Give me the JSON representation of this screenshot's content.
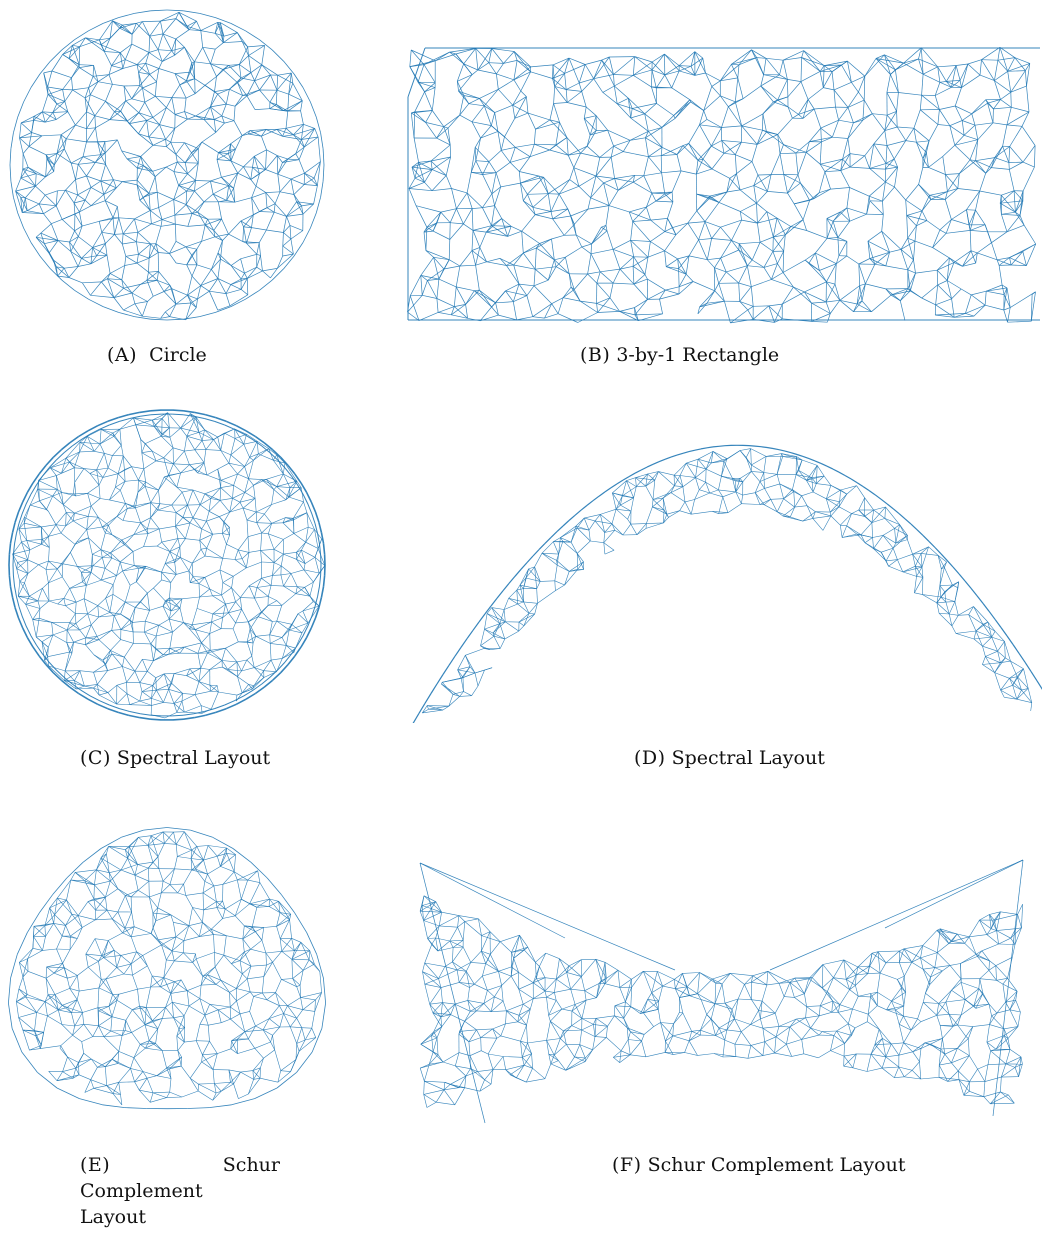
{
  "figure": {
    "line_color": "#1f77b4",
    "panels": [
      {
        "id": "a",
        "label": "(A)",
        "caption": "Circle"
      },
      {
        "id": "b",
        "label": "(B)",
        "caption": "3-by-1 Rectangle"
      },
      {
        "id": "c",
        "label": "(C)",
        "caption": "Spectral Layout"
      },
      {
        "id": "d",
        "label": "(D)",
        "caption": "Spectral Layout"
      },
      {
        "id": "e",
        "label": "(E)",
        "caption_lines": [
          "Schur",
          "Complement",
          "Layout"
        ]
      },
      {
        "id": "f",
        "label": "(F)",
        "caption": "Schur Complement Layout"
      }
    ]
  }
}
